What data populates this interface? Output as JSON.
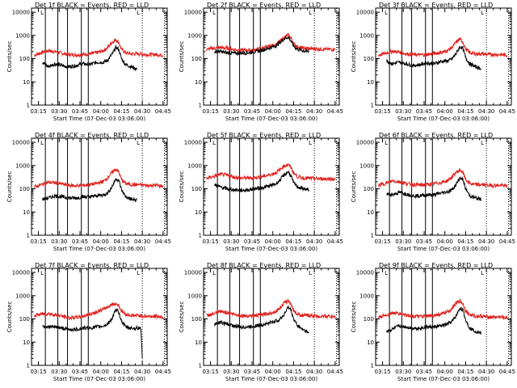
{
  "colors": {
    "events": "#000000",
    "lld": "#e0201c",
    "background": "#ffffff"
  },
  "chart_data": {
    "type": "line",
    "grid": false,
    "x_tick_labels": [
      "03:15",
      "03:30",
      "03:45",
      "04:00",
      "04:15",
      "04:30",
      "04:45"
    ],
    "x_range": [
      "03:10",
      "04:48"
    ],
    "y_scale": "log",
    "y_range": [
      1,
      15000
    ],
    "y_tick_labels": [
      "1",
      "10",
      "100",
      "1000",
      "10000"
    ],
    "xlabel": "Start Time (07-Dec-03 03:06:00)",
    "ylabel": "Counts/sec",
    "event_markers": [
      "03:20",
      "03:29",
      "03:36",
      "03:46",
      "03:51"
    ],
    "dotted_markers": [
      "04:30",
      "04:46"
    ],
    "marker_label": "L",
    "panels": [
      {
        "title": "Det 1f BLACK = Events, RED = LLD",
        "series": [
          {
            "name": "Events",
            "color": "#000000",
            "t": [
              "03:18",
              "03:22",
              "03:27",
              "03:32",
              "03:37",
              "03:42",
              "03:47",
              "03:52",
              "03:57",
              "04:02",
              "04:05",
              "04:08",
              "04:11",
              "04:13",
              "04:15",
              "04:18",
              "04:22",
              "04:26"
            ],
            "values": [
              70,
              45,
              60,
              50,
              45,
              50,
              60,
              55,
              70,
              70,
              85,
              150,
              300,
              250,
              100,
              55,
              45,
              35
            ]
          },
          {
            "name": "LLD",
            "color": "#e0201c",
            "t": [
              "03:12",
              "03:17",
              "03:22",
              "03:27",
              "03:32",
              "03:37",
              "03:42",
              "03:47",
              "03:52",
              "03:57",
              "04:02",
              "04:05",
              "04:08",
              "04:11",
              "04:13",
              "04:15",
              "04:18",
              "04:22",
              "04:27",
              "04:33",
              "04:40",
              "04:45"
            ],
            "values": [
              140,
              180,
              220,
              200,
              170,
              150,
              145,
              150,
              160,
              180,
              220,
              300,
              500,
              650,
              500,
              250,
              180,
              160,
              160,
              150,
              150,
              140
            ]
          }
        ]
      },
      {
        "title": "Det 2f BLACK = Events, RED = LLD",
        "series": [
          {
            "name": "Events",
            "color": "#000000",
            "t": [
              "03:18",
              "03:22",
              "03:27",
              "03:32",
              "03:37",
              "03:42",
              "03:47",
              "03:52",
              "03:57",
              "04:02",
              "04:05",
              "04:08",
              "04:11",
              "04:13",
              "04:15",
              "04:18",
              "04:22",
              "04:26"
            ],
            "values": [
              200,
              200,
              180,
              170,
              175,
              180,
              200,
              230,
              280,
              350,
              480,
              700,
              850,
              600,
              350,
              250,
              220,
              200
            ]
          },
          {
            "name": "LLD",
            "color": "#e0201c",
            "t": [
              "03:12",
              "03:17",
              "03:22",
              "03:27",
              "03:32",
              "03:37",
              "03:42",
              "03:47",
              "03:52",
              "03:57",
              "04:02",
              "04:05",
              "04:08",
              "04:11",
              "04:13",
              "04:15",
              "04:18",
              "04:22",
              "04:27",
              "04:33",
              "04:40",
              "04:45"
            ],
            "values": [
              250,
              280,
              300,
              280,
              250,
              230,
              230,
              240,
              280,
              330,
              400,
              550,
              800,
              1050,
              800,
              450,
              320,
              280,
              270,
              260,
              250,
              250
            ]
          }
        ]
      },
      {
        "title": "Det 3f BLACK = Events, RED = LLD",
        "series": [
          {
            "name": "Events",
            "color": "#000000",
            "t": [
              "03:18",
              "03:22",
              "03:27",
              "03:32",
              "03:37",
              "03:42",
              "03:47",
              "03:52",
              "03:57",
              "04:02",
              "04:05",
              "04:08",
              "04:11",
              "04:13",
              "04:15",
              "04:18",
              "04:22",
              "04:26"
            ],
            "values": [
              80,
              60,
              70,
              60,
              50,
              55,
              65,
              60,
              75,
              80,
              95,
              160,
              330,
              270,
              110,
              60,
              45,
              38
            ]
          },
          {
            "name": "LLD",
            "color": "#e0201c",
            "t": [
              "03:12",
              "03:17",
              "03:22",
              "03:27",
              "03:32",
              "03:37",
              "03:42",
              "03:47",
              "03:52",
              "03:57",
              "04:02",
              "04:05",
              "04:08",
              "04:11",
              "04:13",
              "04:15",
              "04:18",
              "04:22",
              "04:27",
              "04:33",
              "04:40",
              "04:45"
            ],
            "values": [
              140,
              170,
              210,
              190,
              160,
              150,
              145,
              150,
              165,
              185,
              220,
              300,
              500,
              700,
              520,
              260,
              180,
              160,
              160,
              150,
              150,
              140
            ]
          }
        ]
      },
      {
        "title": "Det 4f BLACK = Events, RED = LLD",
        "series": [
          {
            "name": "Events",
            "color": "#000000",
            "t": [
              "03:18",
              "03:22",
              "03:27",
              "03:32",
              "03:37",
              "03:42",
              "03:47",
              "03:52",
              "03:57",
              "04:02",
              "04:05",
              "04:08",
              "04:11",
              "04:13",
              "04:15",
              "04:18",
              "04:22",
              "04:26"
            ],
            "values": [
              35,
              40,
              50,
              45,
              40,
              40,
              45,
              45,
              50,
              55,
              65,
              120,
              270,
              230,
              90,
              45,
              35,
              32
            ]
          },
          {
            "name": "LLD",
            "color": "#e0201c",
            "t": [
              "03:12",
              "03:17",
              "03:22",
              "03:27",
              "03:32",
              "03:37",
              "03:42",
              "03:47",
              "03:52",
              "03:57",
              "04:02",
              "04:05",
              "04:08",
              "04:11",
              "04:13",
              "04:15",
              "04:18",
              "04:22",
              "04:27",
              "04:33",
              "04:40",
              "04:45"
            ],
            "values": [
              120,
              150,
              190,
              180,
              160,
              140,
              135,
              140,
              150,
              170,
              210,
              300,
              500,
              700,
              520,
              250,
              170,
              150,
              150,
              140,
              140,
              130
            ]
          }
        ]
      },
      {
        "title": "Det 5f BLACK = Events, RED = LLD",
        "series": [
          {
            "name": "Events",
            "color": "#000000",
            "t": [
              "03:18",
              "03:22",
              "03:27",
              "03:32",
              "03:37",
              "03:42",
              "03:47",
              "03:52",
              "03:57",
              "04:02",
              "04:05",
              "04:08",
              "04:11",
              "04:13",
              "04:15",
              "04:18",
              "04:22",
              "04:26"
            ],
            "values": [
              150,
              120,
              100,
              90,
              85,
              90,
              100,
              110,
              130,
              160,
              230,
              380,
              550,
              380,
              180,
              120,
              100,
              90
            ]
          },
          {
            "name": "LLD",
            "color": "#e0201c",
            "t": [
              "03:12",
              "03:17",
              "03:22",
              "03:27",
              "03:32",
              "03:37",
              "03:42",
              "03:47",
              "03:52",
              "03:57",
              "04:02",
              "04:05",
              "04:08",
              "04:11",
              "04:13",
              "04:15",
              "04:18",
              "04:22",
              "04:27",
              "04:33",
              "04:40",
              "04:45"
            ],
            "values": [
              280,
              330,
              420,
              380,
              320,
              290,
              290,
              300,
              330,
              390,
              480,
              650,
              950,
              1100,
              850,
              480,
              330,
              290,
              280,
              270,
              270,
              260
            ]
          }
        ]
      },
      {
        "title": "Det 6f BLACK = Events, RED = LLD",
        "series": [
          {
            "name": "Events",
            "color": "#000000",
            "t": [
              "03:18",
              "03:22",
              "03:27",
              "03:32",
              "03:37",
              "03:42",
              "03:47",
              "03:52",
              "03:57",
              "04:02",
              "04:05",
              "04:08",
              "04:11",
              "04:13",
              "04:15",
              "04:18",
              "04:22",
              "04:26"
            ],
            "values": [
              60,
              55,
              70,
              60,
              50,
              50,
              55,
              55,
              65,
              75,
              90,
              150,
              300,
              250,
              100,
              50,
              40,
              35
            ]
          },
          {
            "name": "LLD",
            "color": "#e0201c",
            "t": [
              "03:12",
              "03:17",
              "03:22",
              "03:27",
              "03:32",
              "03:37",
              "03:42",
              "03:47",
              "03:52",
              "03:57",
              "04:02",
              "04:05",
              "04:08",
              "04:11",
              "04:13",
              "04:15",
              "04:18",
              "04:22",
              "04:27",
              "04:33",
              "04:40",
              "04:45"
            ],
            "values": [
              140,
              170,
              220,
              200,
              170,
              150,
              145,
              150,
              165,
              185,
              225,
              310,
              500,
              650,
              500,
              250,
              170,
              150,
              150,
              140,
              140,
              130
            ]
          }
        ]
      },
      {
        "title": "Det 7f BLACK = Events, RED = LLD",
        "series": [
          {
            "name": "Events",
            "color": "#000000",
            "t": [
              "03:18",
              "03:22",
              "03:27",
              "03:32",
              "03:37",
              "03:42",
              "03:47",
              "03:52",
              "03:57",
              "04:02",
              "04:05",
              "04:08",
              "04:11",
              "04:13",
              "04:15",
              "04:18",
              "04:22",
              "04:26",
              "04:29",
              "04:30"
            ],
            "values": [
              50,
              45,
              45,
              40,
              35,
              35,
              40,
              40,
              45,
              50,
              60,
              100,
              240,
              200,
              80,
              45,
              40,
              40,
              40,
              2
            ]
          },
          {
            "name": "LLD",
            "color": "#e0201c",
            "t": [
              "03:12",
              "03:17",
              "03:22",
              "03:27",
              "03:32",
              "03:37",
              "03:42",
              "03:47",
              "03:52",
              "03:57",
              "04:02",
              "04:05",
              "04:08",
              "04:11",
              "04:13",
              "04:15",
              "04:18",
              "04:22",
              "04:27",
              "04:33",
              "04:40",
              "04:45"
            ],
            "values": [
              140,
              160,
              170,
              150,
              130,
              110,
              115,
              130,
              160,
              200,
              260,
              330,
              420,
              450,
              380,
              220,
              160,
              140,
              140,
              130,
              130,
              120
            ]
          }
        ]
      },
      {
        "title": "Det 8f BLACK = Events, RED = LLD",
        "series": [
          {
            "name": "Events",
            "color": "#000000",
            "t": [
              "03:18",
              "03:22",
              "03:27",
              "03:32",
              "03:37",
              "03:42",
              "03:47",
              "03:52",
              "03:57",
              "04:02",
              "04:05",
              "04:08",
              "04:11",
              "04:13",
              "04:15",
              "04:18",
              "04:22",
              "04:26"
            ],
            "values": [
              60,
              70,
              60,
              50,
              45,
              45,
              50,
              55,
              65,
              80,
              95,
              150,
              320,
              250,
              100,
              50,
              35,
              25
            ]
          },
          {
            "name": "LLD",
            "color": "#e0201c",
            "t": [
              "03:12",
              "03:17",
              "03:22",
              "03:27",
              "03:32",
              "03:37",
              "03:42",
              "03:47",
              "03:52",
              "03:57",
              "04:02",
              "04:05",
              "04:08",
              "04:11",
              "04:13",
              "04:15",
              "04:18",
              "04:22",
              "04:27",
              "04:33",
              "04:40",
              "04:45"
            ],
            "values": [
              140,
              160,
              210,
              190,
              160,
              140,
              135,
              140,
              150,
              170,
              210,
              290,
              470,
              600,
              460,
              230,
              160,
              140,
              140,
              130,
              130,
              120
            ]
          }
        ]
      },
      {
        "title": "Det 9f BLACK = Events, RED = LLD",
        "series": [
          {
            "name": "Events",
            "color": "#000000",
            "t": [
              "03:18",
              "03:22",
              "03:27",
              "03:32",
              "03:37",
              "03:42",
              "03:47",
              "03:52",
              "03:57",
              "04:02",
              "04:05",
              "04:08",
              "04:11",
              "04:13",
              "04:15",
              "04:18",
              "04:22",
              "04:26"
            ],
            "values": [
              30,
              35,
              50,
              45,
              40,
              40,
              45,
              45,
              50,
              60,
              75,
              130,
              300,
              240,
              90,
              40,
              30,
              25
            ]
          },
          {
            "name": "LLD",
            "color": "#e0201c",
            "t": [
              "03:12",
              "03:17",
              "03:22",
              "03:27",
              "03:32",
              "03:37",
              "03:42",
              "03:47",
              "03:52",
              "03:57",
              "04:02",
              "04:05",
              "04:08",
              "04:11",
              "04:13",
              "04:15",
              "04:18",
              "04:22",
              "04:27",
              "04:33",
              "04:40",
              "04:45"
            ],
            "values": [
              120,
              140,
              180,
              170,
              150,
              130,
              125,
              130,
              140,
              160,
              200,
              280,
              460,
              600,
              450,
              220,
              150,
              130,
              130,
              120,
              120,
              110
            ]
          }
        ]
      }
    ]
  }
}
